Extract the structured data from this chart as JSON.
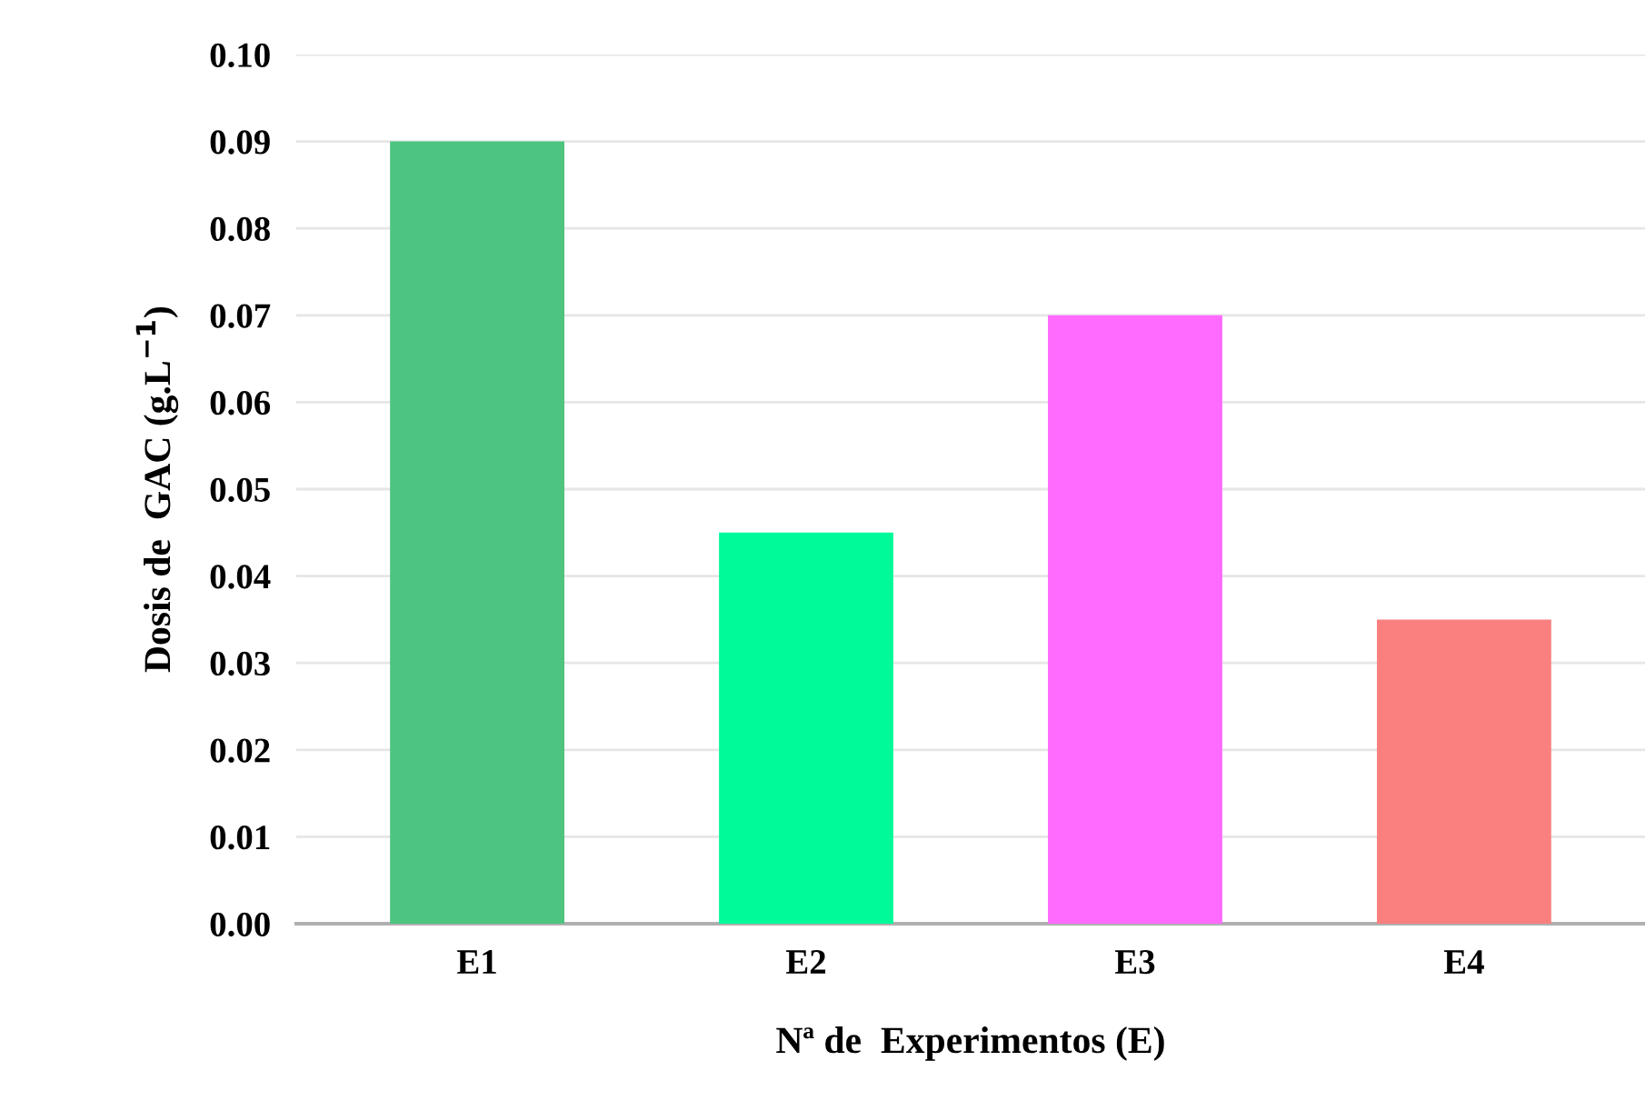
{
  "chart_data": {
    "type": "bar",
    "xlabel": "Nª de  Experimentos (E)",
    "ylabel": "Dosis de  GAC (g.L$^{−1}$)",
    "categories": [
      "E1",
      "E2",
      "E3",
      "E4"
    ],
    "values": [
      0.09,
      0.045,
      0.07,
      0.035
    ],
    "colors": [
      "#4dc47f",
      "#00fa9a",
      "#ff6aff",
      "#fa8080"
    ],
    "ylim": [
      0,
      0.1
    ],
    "yticks": [
      {
        "value": 0,
        "label": "0.00"
      },
      {
        "value": 0.01,
        "label": "0.01"
      },
      {
        "value": 0.02,
        "label": "0.02"
      },
      {
        "value": 0.03,
        "label": "0.03"
      },
      {
        "value": 0.04,
        "label": "0.04"
      },
      {
        "value": 0.05,
        "label": "0.05"
      },
      {
        "value": 0.06,
        "label": "0.06"
      },
      {
        "value": 0.07,
        "label": "0.07"
      },
      {
        "value": 0.08,
        "label": "0.08"
      },
      {
        "value": 0.09,
        "label": "0.09"
      },
      {
        "value": 0.1,
        "label": "0.10"
      }
    ],
    "grid": "y"
  }
}
